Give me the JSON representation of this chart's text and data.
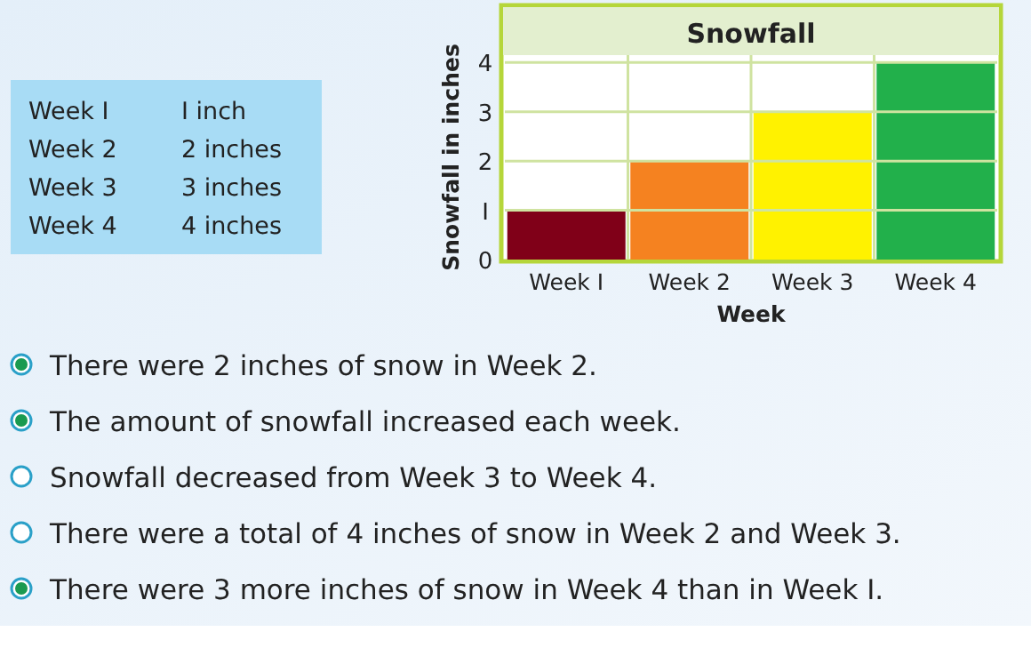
{
  "chart_data": {
    "type": "bar",
    "title": "Snowfall",
    "xlabel": "Week",
    "ylabel": "Snowfall in inches",
    "categories": [
      "Week I",
      "Week 2",
      "Week 3",
      "Week 4"
    ],
    "values": [
      1,
      2,
      3,
      4
    ],
    "colors": [
      "#800018",
      "#f58220",
      "#fff200",
      "#22b04b"
    ],
    "ylim": [
      0,
      4.15
    ],
    "yticks": [
      0,
      {
        "value": 1,
        "label": "I"
      },
      2,
      3,
      {
        "value": 4,
        "label": "4"
      }
    ],
    "grid": true,
    "annotations": [
      "Week I",
      "I inch",
      "Week 2",
      "2 inches",
      "Week 3",
      "3 inches",
      "Week 4",
      "4 inches",
      "There were 2 inches of snow in Week 2.",
      "The amount of snowfall increased each week.",
      "Snowfall decreased from Week 3 to Week 4.",
      "There were a total of 4 inches of snow in Week 2 and Week 3.",
      "There were 3 more inches of snow in Week 4 than in Week I."
    ]
  }
}
